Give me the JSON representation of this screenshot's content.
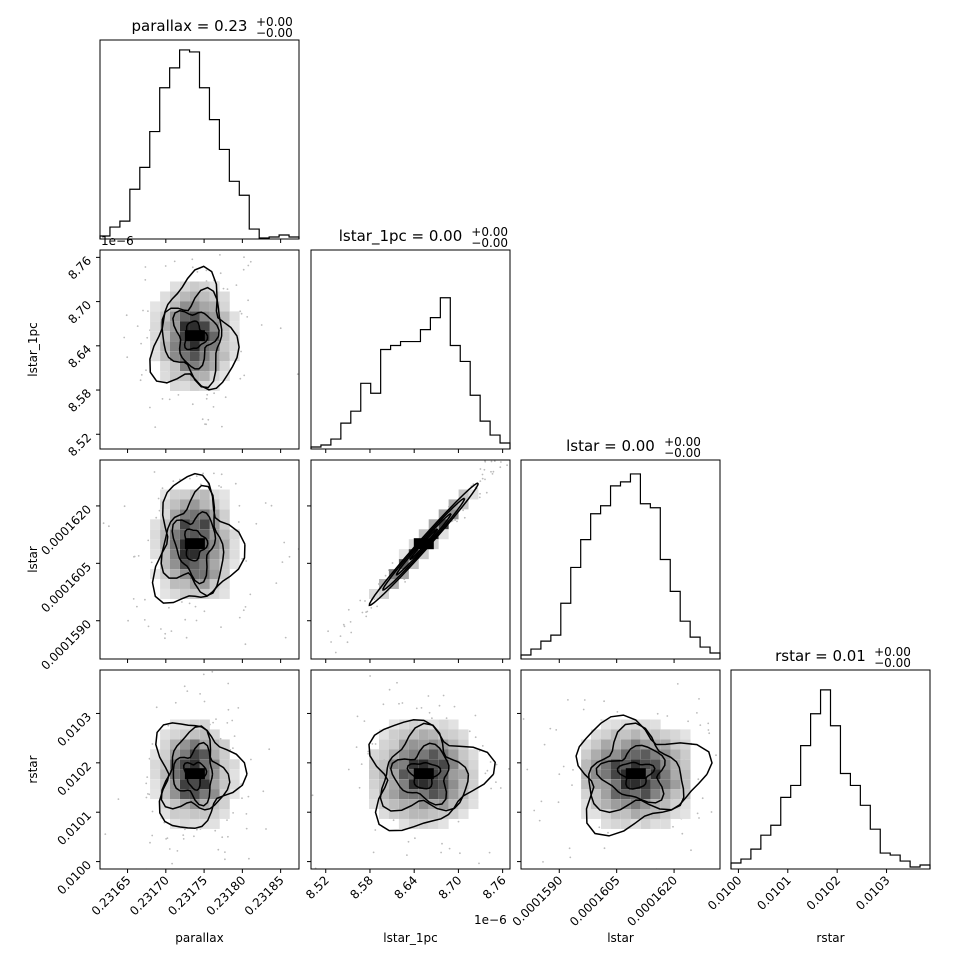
{
  "chart_data": {
    "type": "corner",
    "parameters": [
      "parallax",
      "lstar_1pc",
      "lstar",
      "rstar"
    ],
    "titles": [
      {
        "base": "parallax = 0.23",
        "sup": "+0.00",
        "sub": "−0.00"
      },
      {
        "base": "lstar_1pc = 0.00",
        "sup": "+0.00",
        "sub": "−0.00"
      },
      {
        "base": "lstar = 0.00",
        "sup": "+0.00",
        "sub": "−0.00"
      },
      {
        "base": "rstar = 0.01",
        "sup": "+0.00",
        "sub": "−0.00"
      }
    ],
    "xlabels": [
      "parallax",
      "lstar_1pc",
      "lstar",
      "rstar"
    ],
    "ylabels": [
      "",
      "lstar_1pc",
      "lstar",
      "rstar"
    ],
    "offset_text": {
      "lstar_1pc": "1e−6"
    },
    "ranges": [
      [
        0.231614,
        0.231874
      ],
      [
        8.5,
        8.77
      ],
      [
        0.000158,
        0.0001632
      ],
      [
        0.009985,
        0.010388
      ]
    ],
    "ticks": [
      {
        "values": [
          0.23165,
          0.2317,
          0.23175,
          0.2318,
          0.23185
        ],
        "labels": [
          "0.23165",
          "0.23170",
          "0.23175",
          "0.23180",
          "0.23185"
        ]
      },
      {
        "values": [
          8.52,
          8.58,
          8.64,
          8.7,
          8.76
        ],
        "labels": [
          "8.52",
          "8.58",
          "8.64",
          "8.70",
          "8.76"
        ]
      },
      {
        "values": [
          0.000159,
          0.0001605,
          0.000162
        ],
        "labels": [
          "0.0001590",
          "0.0001605",
          "0.0001620"
        ]
      },
      {
        "values": [
          0.01,
          0.0101,
          0.0102,
          0.0103
        ],
        "labels": [
          "0.0100",
          "0.0101",
          "0.0102",
          "0.0103"
        ]
      }
    ],
    "histograms": [
      [
        0.015,
        0.06,
        0.09,
        0.25,
        0.36,
        0.54,
        0.76,
        0.86,
        0.95,
        0.94,
        0.76,
        0.6,
        0.45,
        0.29,
        0.22,
        0.05,
        0.005,
        0.01,
        0.02,
        0.01
      ],
      [
        0.01,
        0.02,
        0.05,
        0.13,
        0.19,
        0.33,
        0.28,
        0.5,
        0.52,
        0.54,
        0.54,
        0.6,
        0.66,
        0.76,
        0.52,
        0.44,
        0.27,
        0.14,
        0.07,
        0.03
      ],
      [
        0.02,
        0.05,
        0.09,
        0.12,
        0.28,
        0.46,
        0.6,
        0.73,
        0.77,
        0.87,
        0.89,
        0.93,
        0.78,
        0.76,
        0.5,
        0.34,
        0.19,
        0.11,
        0.06,
        0.03
      ],
      [
        0.03,
        0.05,
        0.1,
        0.17,
        0.22,
        0.36,
        0.42,
        0.62,
        0.78,
        0.9,
        0.72,
        0.48,
        0.42,
        0.32,
        0.2,
        0.08,
        0.07,
        0.04,
        0.01,
        0.02
      ]
    ],
    "centers": [
      0.231738,
      8.653,
      0.000161,
      0.010177
    ],
    "spreads": [
      2.55e-05,
      0.037,
      8e-07,
      5.2e-05
    ],
    "correlations": {
      "1,2": 0.99,
      "0,1": 0.0,
      "0,2": 0.0,
      "0,3": 0.0,
      "1,3": 0.0,
      "2,3": 0.0
    },
    "contour_levels_sigma": [
      0.5,
      1.0,
      1.5,
      2.0
    ],
    "grid": false
  }
}
